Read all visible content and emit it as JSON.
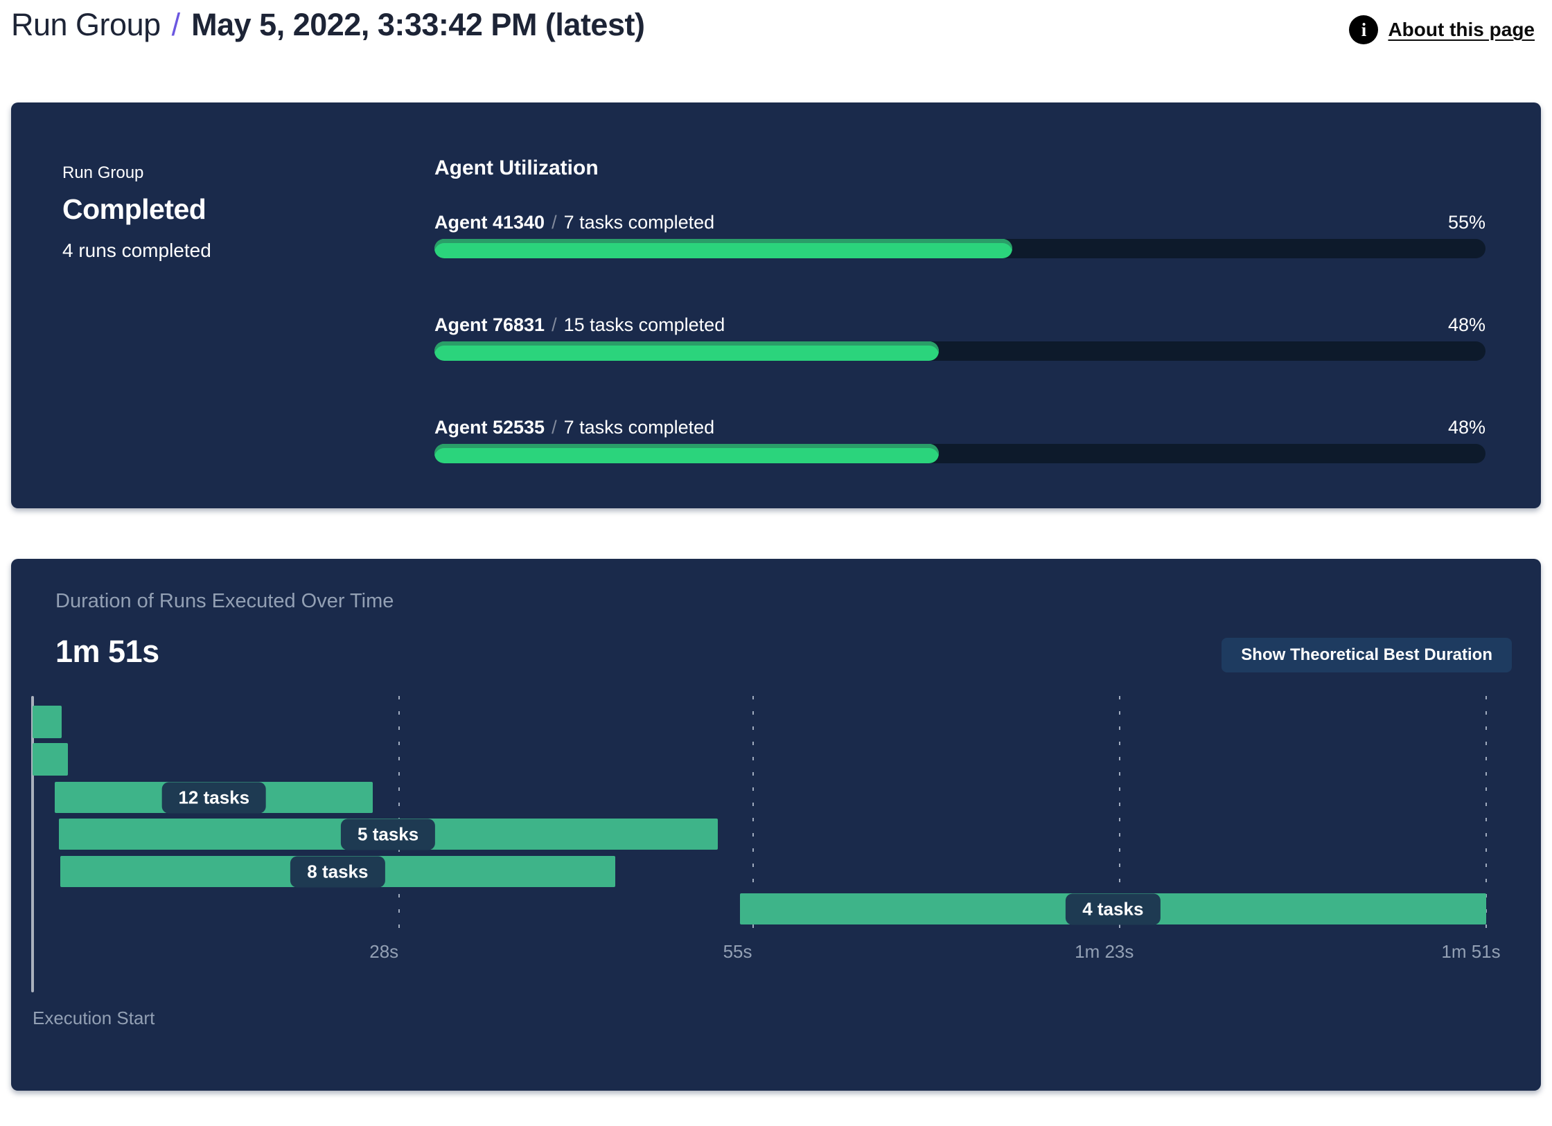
{
  "header": {
    "breadcrumb_root": "Run Group",
    "separator": "/",
    "page_title": "May 5, 2022, 3:33:42 PM (latest)",
    "about_link_label": "About this page",
    "info_icon_glyph": "i"
  },
  "summary": {
    "card_label": "Run Group",
    "status": "Completed",
    "runs_summary": "4 runs completed"
  },
  "agent_utilization": {
    "heading": "Agent Utilization",
    "separator": "/",
    "agents": [
      {
        "name": "Agent 41340",
        "tasks_completed": "7 tasks completed",
        "percent": 55,
        "percent_label": "55%"
      },
      {
        "name": "Agent 76831",
        "tasks_completed": "15 tasks completed",
        "percent": 48,
        "percent_label": "48%"
      },
      {
        "name": "Agent 52535",
        "tasks_completed": "7 tasks completed",
        "percent": 48,
        "percent_label": "48%"
      }
    ]
  },
  "duration": {
    "title": "Duration of Runs Executed Over Time",
    "total_duration": "1m 51s",
    "button_label": "Show Theoretical Best Duration",
    "x_axis_label": "Execution Start"
  },
  "chart_data": [
    {
      "type": "bar",
      "title": "Agent Utilization",
      "orientation": "horizontal",
      "categories": [
        "Agent 41340 / 7 tasks completed",
        "Agent 76831 / 15 tasks completed",
        "Agent 52535 / 7 tasks completed"
      ],
      "values": [
        55,
        48,
        48
      ],
      "unit": "percent",
      "xlim": [
        0,
        100
      ]
    },
    {
      "type": "gantt",
      "title": "Duration of Runs Executed Over Time",
      "total_duration": "1m 51s",
      "xlabel": "Execution Start",
      "x_range_seconds": [
        0,
        111
      ],
      "x_ticks": [
        {
          "seconds": 28,
          "label": "28s"
        },
        {
          "seconds": 55,
          "label": "55s"
        },
        {
          "seconds": 83,
          "label": "1m 23s"
        },
        {
          "seconds": 111,
          "label": "1m 51s"
        }
      ],
      "runs": [
        {
          "start_s": 0,
          "end_s": 2.2,
          "label": ""
        },
        {
          "start_s": 0,
          "end_s": 2.7,
          "label": ""
        },
        {
          "start_s": 1.7,
          "end_s": 26,
          "label": "12 tasks"
        },
        {
          "start_s": 2,
          "end_s": 52.3,
          "label": "5 tasks"
        },
        {
          "start_s": 2.1,
          "end_s": 44.5,
          "label": "8 tasks"
        },
        {
          "start_s": 54,
          "end_s": 111,
          "label": "4 tasks"
        }
      ]
    }
  ],
  "colors": {
    "card_bg": "#1a2a4b",
    "progress_fill": "#2bd47c",
    "progress_fill_edge": "#2a9e68",
    "progress_track": "#0d1a2b",
    "gantt_bar": "#3eb489",
    "label_pill_bg": "#1e3a52",
    "button_bg": "#1e3b60",
    "muted_text": "#93a0b4",
    "accent_slash": "#6b57e0"
  }
}
